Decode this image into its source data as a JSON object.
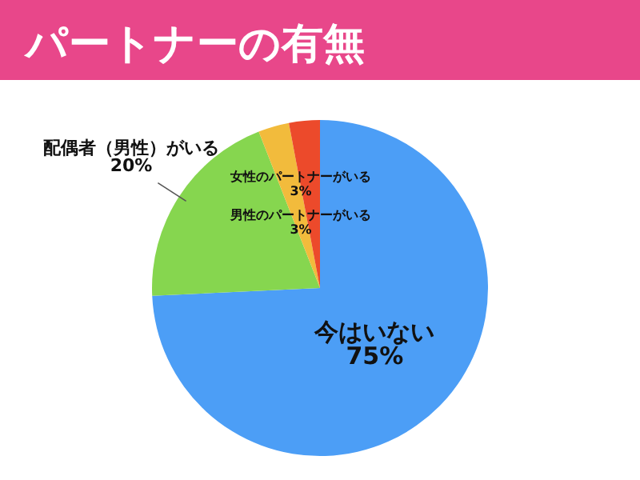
{
  "chart_data": {
    "type": "pie",
    "title": "パートナーの有無",
    "categories": [
      "今はいない",
      "配偶者（男性）がいる",
      "男性のパートナーがいる",
      "女性のパートナーがいる"
    ],
    "values": [
      75,
      20,
      3,
      3
    ],
    "value_labels": [
      "75%",
      "20%",
      "3%",
      "3%"
    ],
    "colors": [
      "#4c9ef6",
      "#86d64f",
      "#f2bb3c",
      "#ec4a2b"
    ]
  }
}
